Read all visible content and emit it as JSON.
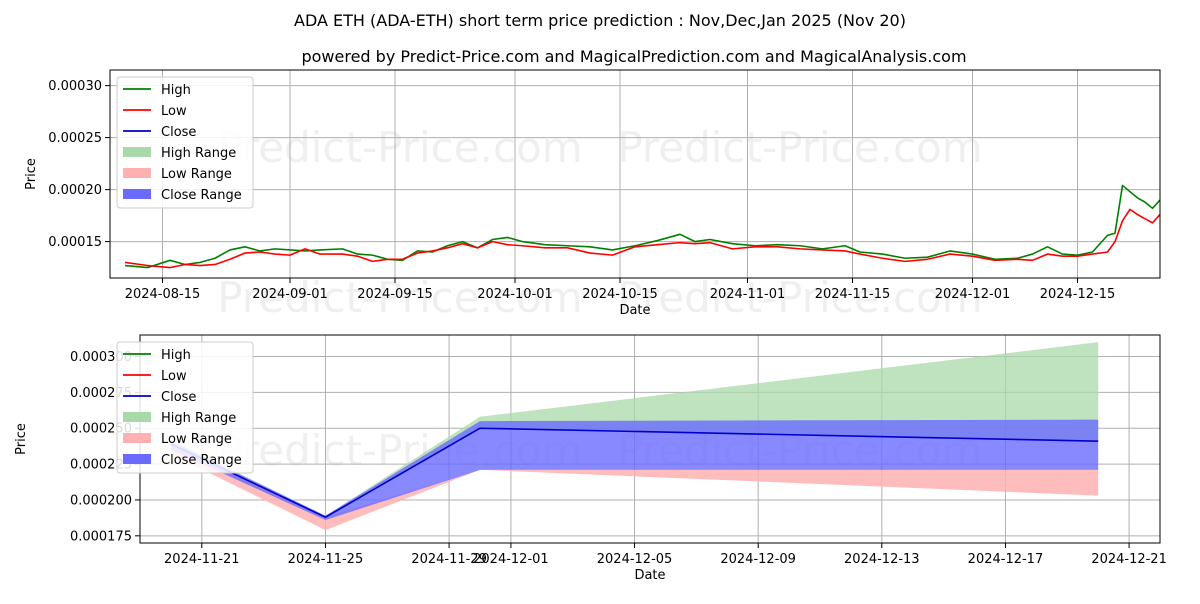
{
  "title": "ADA ETH (ADA-ETH) short term price prediction : Nov,Dec,Jan 2025 (Nov 20)",
  "subtitle": "powered by Predict-Price.com and MagicalPrediction.com and MagicalAnalysis.com",
  "watermark": "Predict-Price.com",
  "colors": {
    "high": "#008000",
    "low": "#ff0000",
    "close": "#0000cc",
    "high_range": "#a9d8a9",
    "low_range": "#ffb0b0",
    "close_range": "#6a6aff",
    "grid": "#b0b0b0"
  },
  "chart_data": [
    {
      "type": "line",
      "panel": "history",
      "xlabel": "Date",
      "ylabel": "Price",
      "xlim": [
        "2024-08-08",
        "2024-12-26"
      ],
      "ylim": [
        0.000115,
        0.000315
      ],
      "xticks": [
        "2024-08-15",
        "2024-09-01",
        "2024-09-15",
        "2024-10-01",
        "2024-10-15",
        "2024-11-01",
        "2024-11-15",
        "2024-12-01",
        "2024-12-15"
      ],
      "yticks": [
        0.00015,
        0.0002,
        0.00025,
        0.0003
      ],
      "ytick_labels": [
        "0.00015",
        "0.00020",
        "0.00025",
        "0.00030"
      ],
      "legend": [
        "High",
        "Low",
        "Close",
        "High Range",
        "Low Range",
        "Close Range"
      ],
      "legend_position": "top-left",
      "series": [
        {
          "name": "High",
          "points": [
            [
              "2024-08-10",
              0.000127
            ],
            [
              "2024-08-13",
              0.000125
            ],
            [
              "2024-08-16",
              0.000132
            ],
            [
              "2024-08-18",
              0.000128
            ],
            [
              "2024-08-20",
              0.00013
            ],
            [
              "2024-08-22",
              0.000134
            ],
            [
              "2024-08-24",
              0.000142
            ],
            [
              "2024-08-26",
              0.000145
            ],
            [
              "2024-08-28",
              0.000141
            ],
            [
              "2024-08-30",
              0.000143
            ],
            [
              "2024-09-03",
              0.000141
            ],
            [
              "2024-09-05",
              0.000142
            ],
            [
              "2024-09-08",
              0.000143
            ],
            [
              "2024-09-10",
              0.000138
            ],
            [
              "2024-09-12",
              0.000137
            ],
            [
              "2024-09-14",
              0.000133
            ],
            [
              "2024-09-16",
              0.000132
            ],
            [
              "2024-09-18",
              0.000141
            ],
            [
              "2024-09-20",
              0.00014
            ],
            [
              "2024-09-22",
              0.000146
            ],
            [
              "2024-09-24",
              0.00015
            ],
            [
              "2024-09-26",
              0.000144
            ],
            [
              "2024-09-28",
              0.000152
            ],
            [
              "2024-09-30",
              0.000154
            ],
            [
              "2024-10-02",
              0.00015
            ],
            [
              "2024-10-05",
              0.000147
            ],
            [
              "2024-10-08",
              0.000146
            ],
            [
              "2024-10-11",
              0.000145
            ],
            [
              "2024-10-14",
              0.000142
            ],
            [
              "2024-10-17",
              0.000146
            ],
            [
              "2024-10-20",
              0.000151
            ],
            [
              "2024-10-23",
              0.000157
            ],
            [
              "2024-10-25",
              0.00015
            ],
            [
              "2024-10-27",
              0.000152
            ],
            [
              "2024-10-30",
              0.000148
            ],
            [
              "2024-11-02",
              0.000146
            ],
            [
              "2024-11-05",
              0.000147
            ],
            [
              "2024-11-08",
              0.000146
            ],
            [
              "2024-11-11",
              0.000143
            ],
            [
              "2024-11-14",
              0.000146
            ],
            [
              "2024-11-16",
              0.00014
            ],
            [
              "2024-11-19",
              0.000138
            ],
            [
              "2024-11-22",
              0.000134
            ],
            [
              "2024-11-25",
              0.000135
            ],
            [
              "2024-11-28",
              0.000141
            ],
            [
              "2024-12-01",
              0.000138
            ],
            [
              "2024-12-04",
              0.000133
            ],
            [
              "2024-12-07",
              0.000134
            ],
            [
              "2024-12-09",
              0.000138
            ],
            [
              "2024-12-11",
              0.000145
            ],
            [
              "2024-12-13",
              0.000138
            ],
            [
              "2024-12-15",
              0.000137
            ],
            [
              "2024-12-17",
              0.00014
            ],
            [
              "2024-12-19",
              0.000156
            ],
            [
              "2024-12-20",
              0.000158
            ],
            [
              "2024-12-21",
              0.000204
            ],
            [
              "2024-12-22",
              0.000198
            ],
            [
              "2024-12-23",
              0.000192
            ],
            [
              "2024-12-24",
              0.000188
            ],
            [
              "2024-12-25",
              0.000182
            ],
            [
              "2024-12-26",
              0.00019
            ]
          ]
        },
        {
          "name": "Low",
          "points": [
            [
              "2024-08-10",
              0.00013
            ],
            [
              "2024-08-13",
              0.000127
            ],
            [
              "2024-08-16",
              0.000125
            ],
            [
              "2024-08-18",
              0.000128
            ],
            [
              "2024-08-20",
              0.000127
            ],
            [
              "2024-08-22",
              0.000128
            ],
            [
              "2024-08-24",
              0.000133
            ],
            [
              "2024-08-26",
              0.000139
            ],
            [
              "2024-08-28",
              0.00014
            ],
            [
              "2024-08-30",
              0.000138
            ],
            [
              "2024-09-01",
              0.000137
            ],
            [
              "2024-09-03",
              0.000143
            ],
            [
              "2024-09-05",
              0.000138
            ],
            [
              "2024-09-08",
              0.000138
            ],
            [
              "2024-09-10",
              0.000136
            ],
            [
              "2024-09-12",
              0.000131
            ],
            [
              "2024-09-14",
              0.000133
            ],
            [
              "2024-09-16",
              0.000133
            ],
            [
              "2024-09-18",
              0.000139
            ],
            [
              "2024-09-20",
              0.000141
            ],
            [
              "2024-09-22",
              0.000144
            ],
            [
              "2024-09-24",
              0.000148
            ],
            [
              "2024-09-26",
              0.000144
            ],
            [
              "2024-09-28",
              0.00015
            ],
            [
              "2024-09-30",
              0.000147
            ],
            [
              "2024-10-02",
              0.000146
            ],
            [
              "2024-10-05",
              0.000144
            ],
            [
              "2024-10-08",
              0.000144
            ],
            [
              "2024-10-11",
              0.000139
            ],
            [
              "2024-10-14",
              0.000137
            ],
            [
              "2024-10-17",
              0.000145
            ],
            [
              "2024-10-20",
              0.000147
            ],
            [
              "2024-10-23",
              0.000149
            ],
            [
              "2024-10-25",
              0.000148
            ],
            [
              "2024-10-27",
              0.000149
            ],
            [
              "2024-10-30",
              0.000143
            ],
            [
              "2024-11-02",
              0.000145
            ],
            [
              "2024-11-05",
              0.000145
            ],
            [
              "2024-11-08",
              0.000143
            ],
            [
              "2024-11-11",
              0.000142
            ],
            [
              "2024-11-14",
              0.000141
            ],
            [
              "2024-11-16",
              0.000138
            ],
            [
              "2024-11-19",
              0.000134
            ],
            [
              "2024-11-22",
              0.000131
            ],
            [
              "2024-11-25",
              0.000133
            ],
            [
              "2024-11-28",
              0.000138
            ],
            [
              "2024-12-01",
              0.000136
            ],
            [
              "2024-12-04",
              0.000132
            ],
            [
              "2024-12-07",
              0.000133
            ],
            [
              "2024-12-09",
              0.000132
            ],
            [
              "2024-12-11",
              0.000138
            ],
            [
              "2024-12-13",
              0.000136
            ],
            [
              "2024-12-15",
              0.000136
            ],
            [
              "2024-12-17",
              0.000138
            ],
            [
              "2024-12-19",
              0.00014
            ],
            [
              "2024-12-20",
              0.00015
            ],
            [
              "2024-12-21",
              0.00017
            ],
            [
              "2024-12-22",
              0.000181
            ],
            [
              "2024-12-23",
              0.000176
            ],
            [
              "2024-12-24",
              0.000172
            ],
            [
              "2024-12-25",
              0.000168
            ],
            [
              "2024-12-26",
              0.000176
            ]
          ]
        }
      ]
    },
    {
      "type": "line",
      "panel": "forecast",
      "xlabel": "Date",
      "ylabel": "Price",
      "xlim": [
        "2024-11-19",
        "2024-12-22"
      ],
      "ylim": [
        0.00017,
        0.000315
      ],
      "xticks": [
        "2024-11-21",
        "2024-11-25",
        "2024-11-29",
        "2024-12-01",
        "2024-12-05",
        "2024-12-09",
        "2024-12-13",
        "2024-12-17",
        "2024-12-21"
      ],
      "yticks": [
        0.000175,
        0.0002,
        0.000225,
        0.00025,
        0.000275,
        0.0003
      ],
      "ytick_labels": [
        "0.000175",
        "0.000200",
        "0.000225",
        "0.000250",
        "0.000275",
        "0.000300"
      ],
      "legend": [
        "High",
        "Low",
        "Close",
        "High Range",
        "Low Range",
        "Close Range"
      ],
      "legend_position": "top-left",
      "series": [
        {
          "name": "Close",
          "x": [
            "2024-11-20",
            "2024-11-25",
            "2024-11-30",
            "2024-12-20"
          ],
          "values": [
            0.000239,
            0.000188,
            0.00025,
            0.000241
          ]
        },
        {
          "name": "High Range",
          "x": [
            "2024-11-20",
            "2024-11-25",
            "2024-11-30",
            "2024-12-20"
          ],
          "upper": [
            0.000242,
            0.000189,
            0.000258,
            0.00031
          ],
          "lower": [
            0.000236,
            0.000187,
            0.00025,
            0.000241
          ]
        },
        {
          "name": "Low Range",
          "x": [
            "2024-11-20",
            "2024-11-25",
            "2024-11-30",
            "2024-12-20"
          ],
          "upper": [
            0.000239,
            0.000188,
            0.000221,
            0.000221
          ],
          "lower": [
            0.000232,
            0.000179,
            0.000221,
            0.000203
          ]
        },
        {
          "name": "Close Range",
          "x": [
            "2024-11-20",
            "2024-11-25",
            "2024-11-30",
            "2024-12-20"
          ],
          "upper": [
            0.000241,
            0.000189,
            0.000255,
            0.000256
          ],
          "lower": [
            0.000235,
            0.000186,
            0.000221,
            0.000221
          ]
        }
      ]
    }
  ]
}
